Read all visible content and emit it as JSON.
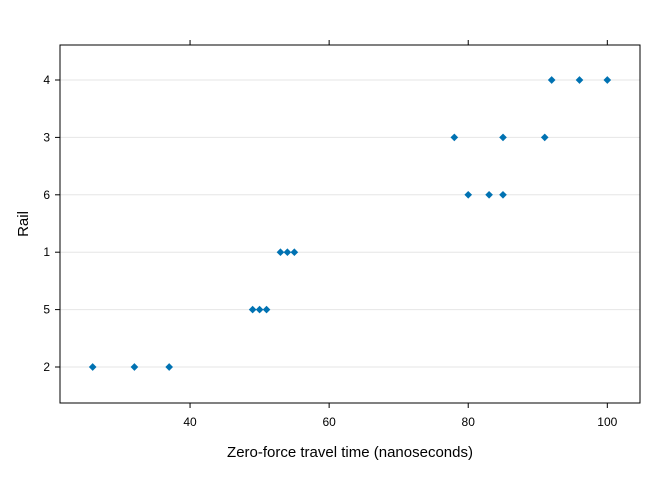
{
  "chart_data": {
    "type": "scatter",
    "title": "",
    "xlabel": "Zero-force travel time (nanoseconds)",
    "ylabel": "Rail",
    "xlim": [
      21.3,
      104.7
    ],
    "x_ticks": [
      40,
      60,
      80,
      100
    ],
    "y_categories": [
      "2",
      "5",
      "1",
      "6",
      "3",
      "4"
    ],
    "grid": "horizontal",
    "legend": "none",
    "point_color": "#0072b2",
    "gridline_color": "#e6e6e6",
    "points": [
      {
        "rail": "4",
        "x": 92
      },
      {
        "rail": "4",
        "x": 96
      },
      {
        "rail": "4",
        "x": 100
      },
      {
        "rail": "3",
        "x": 78
      },
      {
        "rail": "3",
        "x": 85
      },
      {
        "rail": "3",
        "x": 91
      },
      {
        "rail": "6",
        "x": 80
      },
      {
        "rail": "6",
        "x": 83
      },
      {
        "rail": "6",
        "x": 85
      },
      {
        "rail": "1",
        "x": 53
      },
      {
        "rail": "1",
        "x": 54
      },
      {
        "rail": "1",
        "x": 55
      },
      {
        "rail": "5",
        "x": 49
      },
      {
        "rail": "5",
        "x": 50
      },
      {
        "rail": "5",
        "x": 51
      },
      {
        "rail": "2",
        "x": 26
      },
      {
        "rail": "2",
        "x": 32
      },
      {
        "rail": "2",
        "x": 37
      }
    ]
  }
}
